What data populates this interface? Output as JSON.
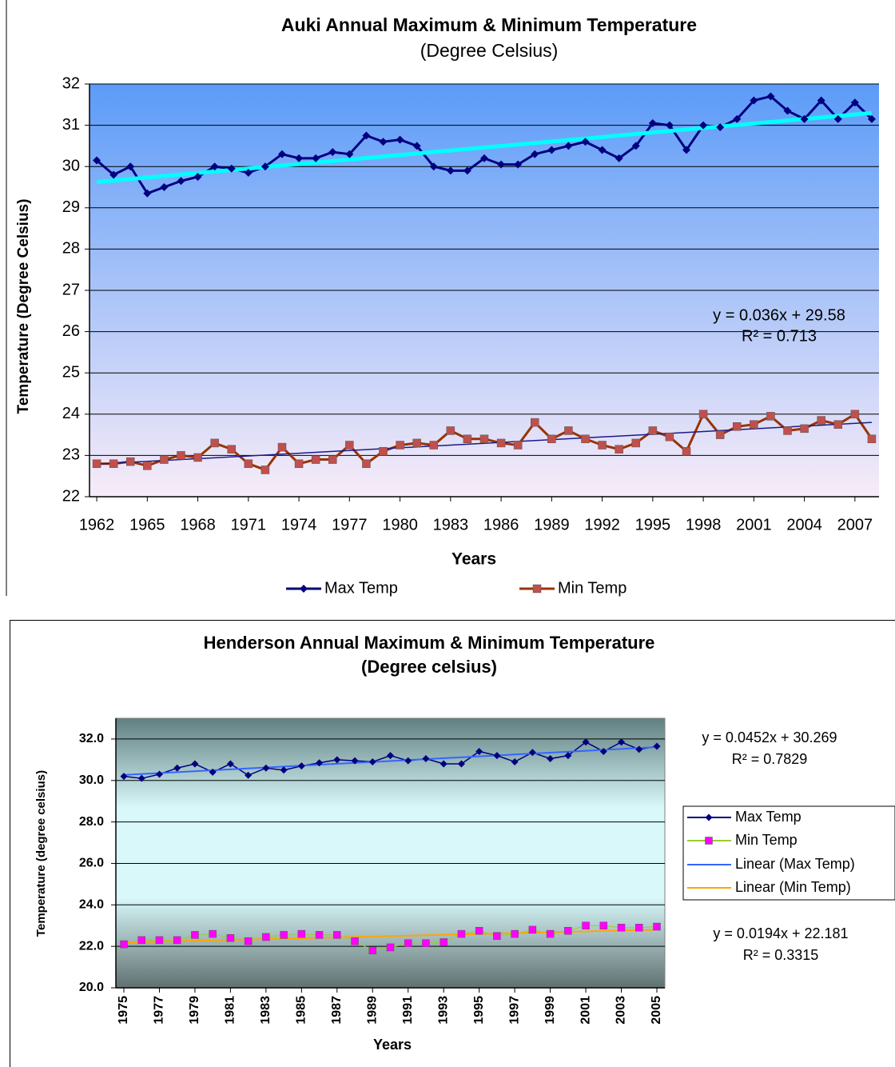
{
  "chart_data": [
    {
      "type": "line",
      "title": "Auki Annual Maximum & Minimum Temperature",
      "subtitle": "(Degree Celsius)",
      "x": [
        1962,
        1963,
        1964,
        1965,
        1966,
        1967,
        1968,
        1969,
        1970,
        1971,
        1972,
        1973,
        1974,
        1975,
        1976,
        1977,
        1978,
        1979,
        1980,
        1981,
        1982,
        1983,
        1984,
        1985,
        1986,
        1987,
        1988,
        1989,
        1990,
        1991,
        1992,
        1993,
        1994,
        1995,
        1996,
        1997,
        1998,
        1999,
        2000,
        2001,
        2002,
        2003,
        2004,
        2005,
        2006,
        2007,
        2008
      ],
      "series": [
        {
          "name": "Max Temp",
          "color": "#000080",
          "marker": "diamond",
          "marker_color": "#000080",
          "values": [
            30.15,
            29.8,
            30.0,
            29.35,
            29.5,
            29.65,
            29.75,
            30.0,
            29.95,
            29.85,
            30.0,
            30.3,
            30.2,
            30.2,
            30.35,
            30.3,
            30.75,
            30.6,
            30.65,
            30.5,
            30.0,
            29.9,
            29.9,
            30.2,
            30.05,
            30.05,
            30.3,
            30.4,
            30.5,
            30.6,
            30.4,
            30.2,
            30.5,
            31.05,
            31.0,
            30.4,
            31.0,
            30.95,
            31.15,
            31.6,
            31.7,
            31.35,
            31.15,
            31.6,
            31.15,
            31.55,
            31.15
          ],
          "trendline": {
            "color": "#00ffff",
            "width": 5
          }
        },
        {
          "name": "Min Temp",
          "color": "#993300",
          "marker": "square",
          "marker_color": "#c0504d",
          "values": [
            22.8,
            22.8,
            22.85,
            22.75,
            22.9,
            23.0,
            22.95,
            23.3,
            23.15,
            22.8,
            22.65,
            23.2,
            22.8,
            22.9,
            22.9,
            23.25,
            22.8,
            23.1,
            23.25,
            23.3,
            23.25,
            23.6,
            23.4,
            23.4,
            23.3,
            23.25,
            23.8,
            23.4,
            23.6,
            23.4,
            23.25,
            23.15,
            23.3,
            23.6,
            23.45,
            23.1,
            24.0,
            23.5,
            23.7,
            23.75,
            23.95,
            23.6,
            23.65,
            23.85,
            23.75,
            24.0,
            23.4
          ],
          "trendline": {
            "color": "#1a1a8a",
            "width": 1.5
          }
        }
      ],
      "xlim": [
        1961.57,
        2008.43
      ],
      "xticks": [
        1962,
        1965,
        1968,
        1971,
        1974,
        1977,
        1980,
        1983,
        1986,
        1989,
        1992,
        1995,
        1998,
        2001,
        2004,
        2007
      ],
      "ylim": [
        22,
        32
      ],
      "yticks": [
        22,
        23,
        24,
        25,
        26,
        27,
        28,
        29,
        30,
        31,
        32
      ],
      "grid": true,
      "xlabel": "Years",
      "ylabel": "Temperature (Degree Celsius)",
      "legend": "bottom",
      "annotations": [
        "y = 0.036x + 29.58",
        "R² = 0.713"
      ],
      "plot_gradient": [
        "#5b9bf8",
        "#f8ecf8"
      ]
    },
    {
      "type": "line",
      "title": "Henderson Annual Maximum & Minimum Temperature",
      "subtitle": "(Degree celsius)",
      "x": [
        1975,
        1976,
        1977,
        1978,
        1979,
        1980,
        1981,
        1982,
        1983,
        1984,
        1985,
        1986,
        1987,
        1988,
        1989,
        1990,
        1991,
        1992,
        1993,
        1994,
        1995,
        1996,
        1997,
        1998,
        1999,
        2000,
        2001,
        2002,
        2003,
        2004,
        2005
      ],
      "series": [
        {
          "name": "Max Temp",
          "color": "#000080",
          "marker": "diamond",
          "marker_color": "#000080",
          "values": [
            30.2,
            30.1,
            30.3,
            30.6,
            30.8,
            30.4,
            30.8,
            30.25,
            30.6,
            30.5,
            30.7,
            30.85,
            31.0,
            30.95,
            30.9,
            31.2,
            30.95,
            31.05,
            30.8,
            30.8,
            31.4,
            31.2,
            30.9,
            31.35,
            31.05,
            31.2,
            31.85,
            31.4,
            31.85,
            31.5,
            31.65
          ],
          "trendline": {
            "name": "Linear (Max Temp)",
            "color": "#3366ff",
            "width": 2
          }
        },
        {
          "name": "Min Temp",
          "color": "#9acd32",
          "marker": "square",
          "marker_color": "#ff00ff",
          "values": [
            22.1,
            22.3,
            22.3,
            22.3,
            22.55,
            22.6,
            22.4,
            22.25,
            22.45,
            22.55,
            22.6,
            22.55,
            22.55,
            22.25,
            21.8,
            21.95,
            22.15,
            22.15,
            22.2,
            22.6,
            22.75,
            22.5,
            22.6,
            22.8,
            22.6,
            22.75,
            23.0,
            23.0,
            22.9,
            22.9,
            22.95
          ],
          "trendline": {
            "name": "Linear (Min Temp)",
            "color": "#ffa500",
            "width": 2
          }
        }
      ],
      "xlim": [
        1974.55,
        2005.45
      ],
      "xticks": [
        1975,
        1977,
        1979,
        1981,
        1983,
        1985,
        1987,
        1989,
        1991,
        1993,
        1995,
        1997,
        1999,
        2001,
        2003,
        2005
      ],
      "ylim": [
        20,
        33
      ],
      "yticks": [
        {
          "value": 20,
          "label": "20.0"
        },
        {
          "value": 22,
          "label": "22.0"
        },
        {
          "value": 24,
          "label": "24.0"
        },
        {
          "value": 26,
          "label": "26.0"
        },
        {
          "value": 28,
          "label": "28.0"
        },
        {
          "value": 30,
          "label": "30.0"
        },
        {
          "value": 32,
          "label": "32.0"
        }
      ],
      "grid": true,
      "xlabel": "Years",
      "ylabel": "Temperature (degree celsius)",
      "legend": "right",
      "annotations": [
        "y = 0.0452x + 30.269",
        "R² = 0.7829",
        "y = 0.0194x + 22.181",
        "R² = 0.3315"
      ],
      "plot_gradient": [
        "#5f7f80",
        "#d8f8fa",
        "#d8f8fa",
        "#607070"
      ]
    }
  ]
}
